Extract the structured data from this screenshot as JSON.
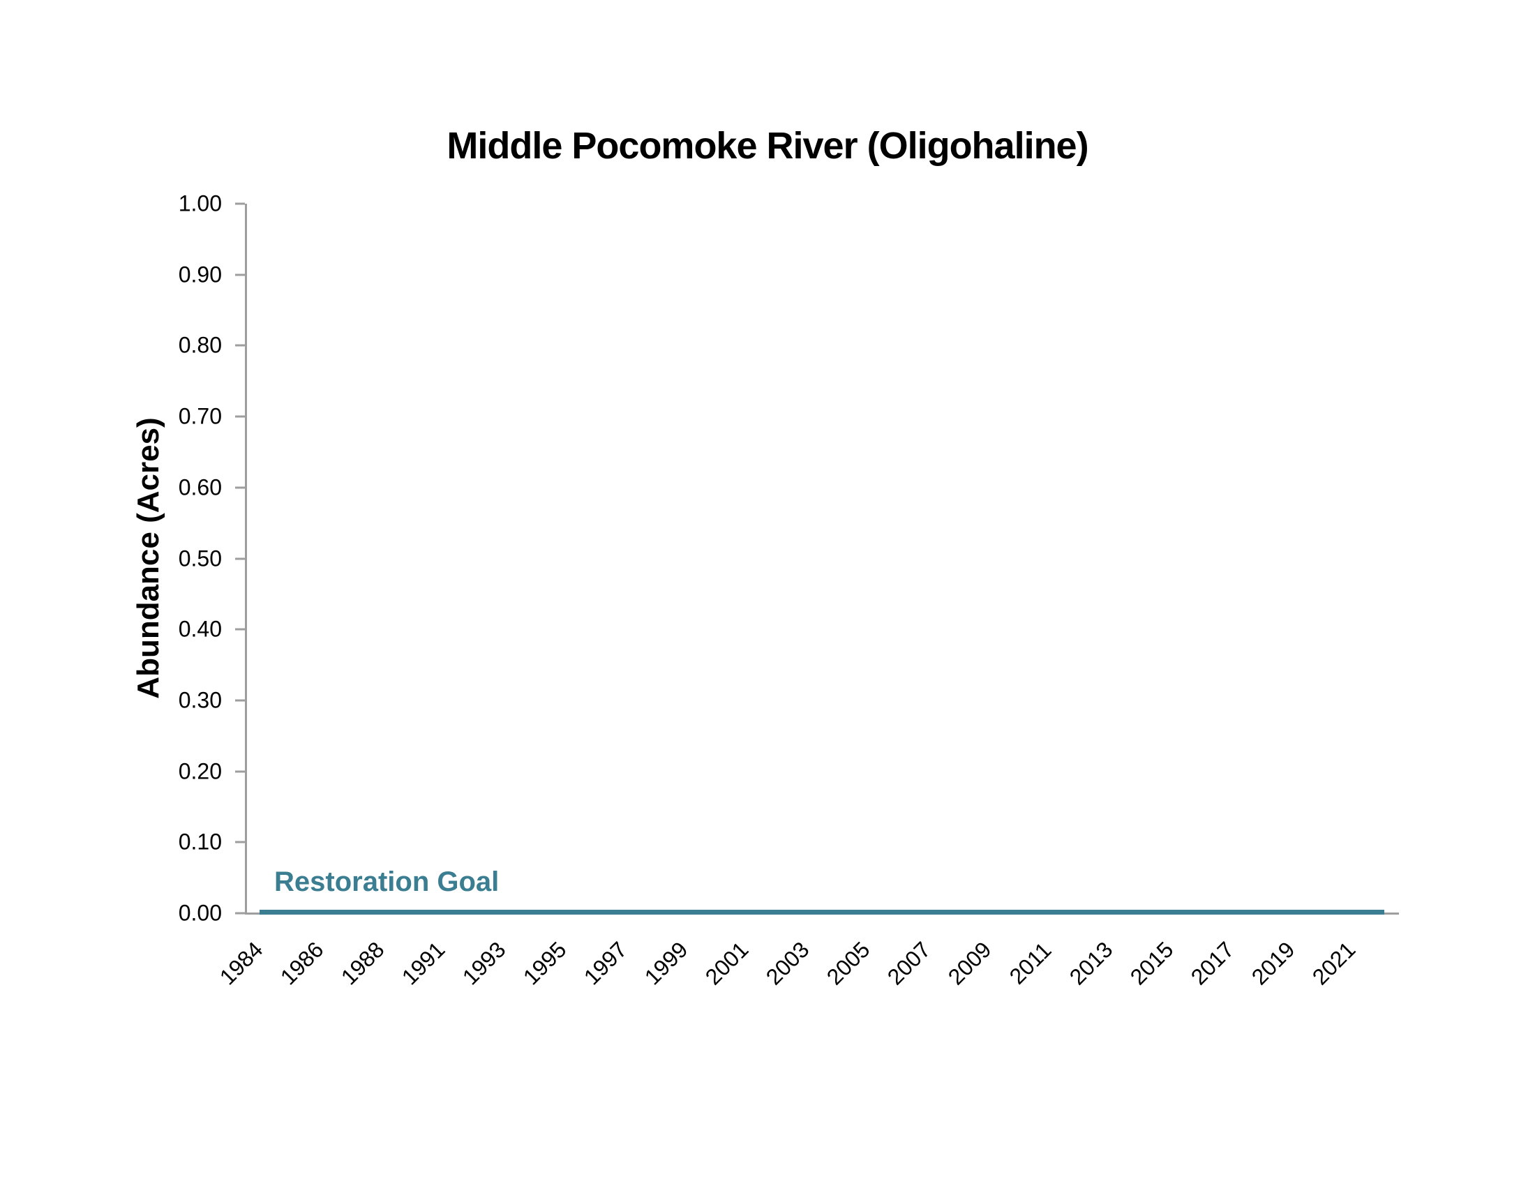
{
  "chart_data": {
    "type": "line",
    "title": "Middle Pocomoke River (Oligohaline)",
    "xlabel": "",
    "ylabel": "Abundance (Acres)",
    "ylim": [
      0.0,
      1.0
    ],
    "ytick_step": 0.1,
    "ytick_labels": [
      "1.00",
      "0.90",
      "0.80",
      "0.70",
      "0.60",
      "0.50",
      "0.40",
      "0.30",
      "0.20",
      "0.10",
      "0.00"
    ],
    "xtick_labels": [
      "1984",
      "1986",
      "1988",
      "1991",
      "1993",
      "1995",
      "1997",
      "1999",
      "2001",
      "2003",
      "2005",
      "2007",
      "2009",
      "2011",
      "2013",
      "2015",
      "2017",
      "2019",
      "2021"
    ],
    "grid": false,
    "legend_position": "none",
    "series": [
      {
        "name": "Restoration Goal",
        "label": "Restoration Goal",
        "type": "horizontal-line",
        "y": 0.0,
        "color": "#3b7e92"
      }
    ],
    "abundance_values_shown": "none (no bars or data markers visible; only the flat Restoration Goal line at 0.00)"
  },
  "colors": {
    "axis": "#9e9e9e",
    "goal": "#3b7e92",
    "text": "#000000",
    "background": "#ffffff"
  }
}
